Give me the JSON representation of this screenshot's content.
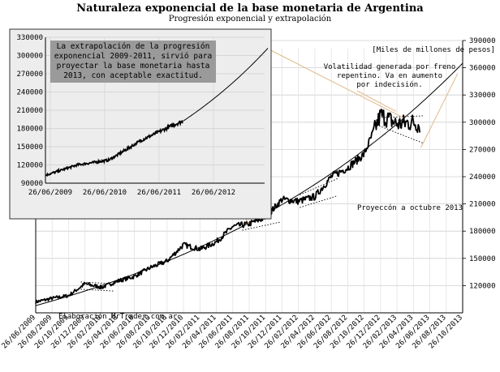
{
  "title": "Naturaleza exponencial de la base monetaria de Argentina",
  "subtitle": "Progresión exponencial y extrapolación",
  "chart_data": [
    {
      "type": "line",
      "ylabel": "[Miles de millones de pesos]",
      "ylim": [
        90000,
        390000
      ],
      "yticks": [
        120000,
        150000,
        180000,
        210000,
        240000,
        270000,
        300000,
        330000,
        360000,
        390000
      ],
      "ytick_labels": [
        "120000",
        "150000",
        "180000",
        "210000",
        "240000",
        "270000",
        "300000",
        "330000",
        "360000",
        "390000"
      ],
      "xlim": [
        "2009-06-26",
        "2013-10-26"
      ],
      "xtick_labels": [
        "26/06/2009",
        "26/08/2009",
        "26/10/2009",
        "26/12/2009",
        "26/02/2010",
        "26/04/2010",
        "26/06/2010",
        "26/08/2010",
        "26/10/2010",
        "26/12/2010",
        "26/02/2011",
        "26/04/2011",
        "26/06/2011",
        "26/08/2011",
        "26/10/2011",
        "26/12/2011",
        "26/02/2012",
        "26/04/2012",
        "26/06/2012",
        "26/08/2012",
        "26/10/2012",
        "26/12/2012",
        "26/02/2013",
        "26/04/2013",
        "26/06/2013",
        "26/08/2013",
        "26/10/2013"
      ],
      "series": [
        {
          "x": [
            "2009-06-26",
            "2009-08-26",
            "2009-10-26",
            "2009-12-26",
            "2010-02-26",
            "2010-04-26",
            "2010-06-26",
            "2010-08-26",
            "2010-10-26",
            "2010-12-26",
            "2011-02-26",
            "2011-04-26",
            "2011-06-26",
            "2011-08-26",
            "2011-10-26",
            "2011-12-26",
            "2012-02-26",
            "2012-04-26",
            "2012-06-26",
            "2012-08-26",
            "2012-10-26",
            "2012-12-26",
            "2013-02-26",
            "2013-04-26",
            "2013-05-20"
          ],
          "values": [
            102000,
            106000,
            109000,
            122000,
            118000,
            125000,
            130000,
            140000,
            147000,
            165000,
            160000,
            168000,
            185000,
            188000,
            195000,
            215000,
            213000,
            218000,
            240000,
            250000,
            265000,
            308000,
            298000,
            300000,
            297000
          ]
        },
        {
          "x": [
            "2009-06-26",
            "2010-06-26",
            "2011-06-26",
            "2012-06-26",
            "2013-04-26",
            "2013-10-26"
          ],
          "values": [
            98000,
            125000,
            160000,
            212000,
            278000,
            365000
          ]
        }
      ],
      "annotations": [
        "Volatilidad generada por freno repentino. Va en aumento por indecisión.",
        "Proyeccón a octubre 2013",
        "Elaboración MrTrader.com.ar"
      ]
    },
    {
      "type": "line",
      "ylim": [
        90000,
        330000
      ],
      "yticks": [
        90000,
        120000,
        150000,
        180000,
        210000,
        240000,
        270000,
        300000,
        330000
      ],
      "ytick_labels": [
        "90000",
        "120000",
        "150000",
        "180000",
        "210000",
        "240000",
        "270000",
        "300000",
        "330000"
      ],
      "xlim": [
        "2009-06-26",
        "2012-12-26"
      ],
      "xtick_labels": [
        "26/06/2009",
        "26/06/2010",
        "26/06/2011",
        "26/06/2012"
      ],
      "series": [
        {
          "x": [
            "2009-06-26",
            "2009-12-26",
            "2010-06-26",
            "2010-12-26",
            "2011-06-26",
            "2011-08-26"
          ],
          "values": [
            103000,
            120000,
            128000,
            160000,
            185000,
            192000
          ]
        },
        {
          "x": [
            "2011-08-26",
            "2012-06-26",
            "2012-12-26"
          ],
          "values": [
            192000,
            252000,
            312000
          ]
        }
      ],
      "annotations": [
        "La extrapolación de la progresión exponencial 2009-2011, sirvió para proyectar la base monetaria hasta 2013, con aceptable exactitud."
      ]
    }
  ]
}
